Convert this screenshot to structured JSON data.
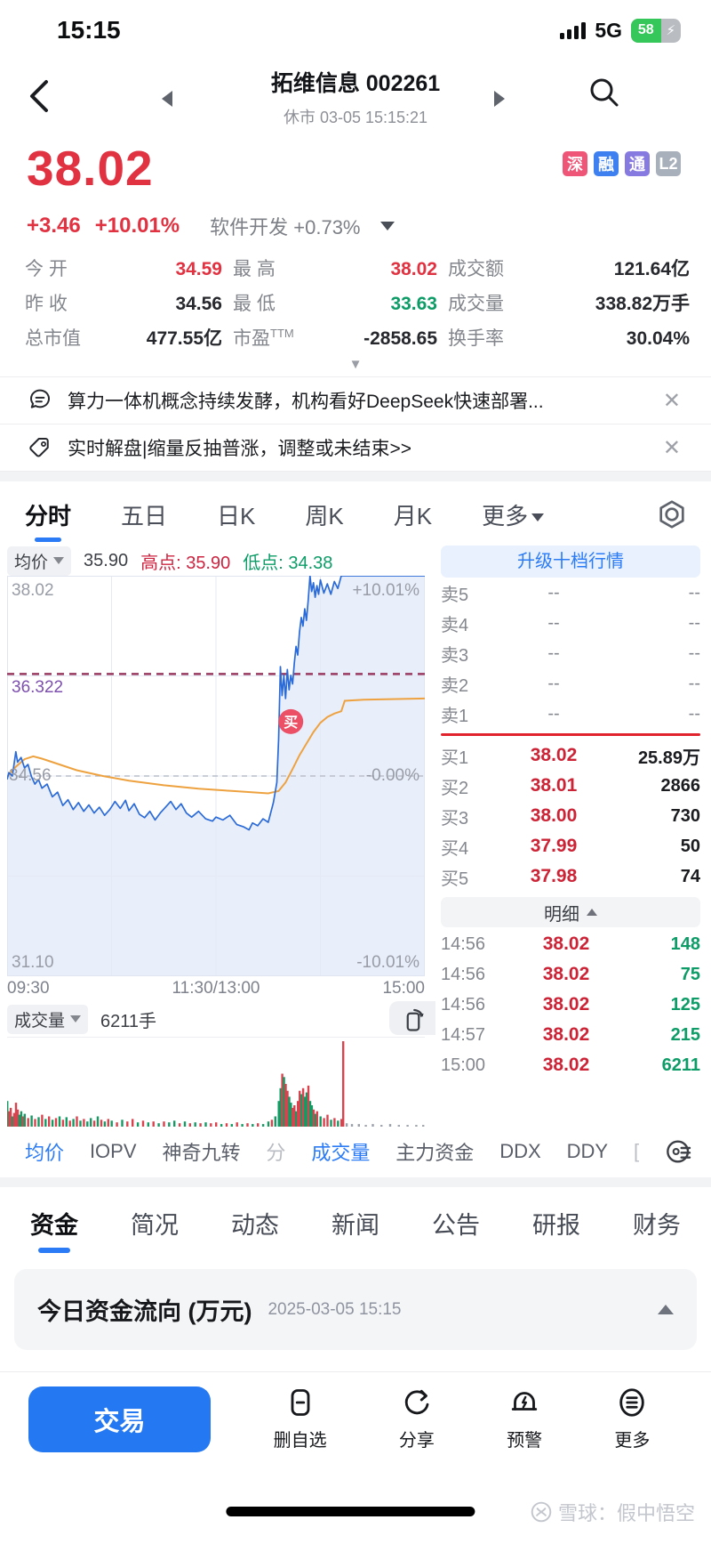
{
  "status_bar": {
    "time": "15:15",
    "network": "5G",
    "battery_percent": "58"
  },
  "nav": {
    "title": "拓维信息 002261",
    "market_status": "休市 03-05 15:15:21"
  },
  "quote": {
    "price": "38.02",
    "change": "+3.46",
    "change_percent": "+10.01%",
    "industry": "软件开发 +0.73%",
    "badges": [
      {
        "label": "深",
        "color": "#ee5577"
      },
      {
        "label": "融",
        "color": "#3e80f0"
      },
      {
        "label": "通",
        "color": "#8679e0"
      },
      {
        "label": "L2",
        "color": "#a8b0bc"
      }
    ]
  },
  "stats": {
    "items": [
      {
        "label": "今 开",
        "sup": "",
        "value": "34.59",
        "color": "#e03241"
      },
      {
        "label": "最 高",
        "sup": "",
        "value": "38.02",
        "color": "#e03241"
      },
      {
        "label": "成交额",
        "sup": "",
        "value": "121.64亿",
        "color": "#26282d"
      },
      {
        "label": "昨 收",
        "sup": "",
        "value": "34.56",
        "color": "#26282d"
      },
      {
        "label": "最 低",
        "sup": "",
        "value": "33.63",
        "color": "#0d9c67"
      },
      {
        "label": "成交量",
        "sup": "",
        "value": "338.82万手",
        "color": "#26282d"
      },
      {
        "label": "总市值",
        "sup": "",
        "value": "477.55亿",
        "color": "#26282d"
      },
      {
        "label": "市盈",
        "sup": "TTM",
        "value": "-2858.65",
        "color": "#26282d"
      },
      {
        "label": "换手率",
        "sup": "",
        "value": "30.04%",
        "color": "#26282d"
      }
    ]
  },
  "banners": {
    "items": [
      {
        "text": "算力一体机概念持续发酵，机构看好DeepSeek快速部署...",
        "close": "✕"
      },
      {
        "text": "实时解盘|缩量反抽普涨，调整或未结束>>",
        "close": "✕"
      }
    ]
  },
  "chart_tabs": {
    "items": [
      {
        "label": "分时"
      },
      {
        "label": "五日"
      },
      {
        "label": "日K"
      },
      {
        "label": "周K"
      },
      {
        "label": "月K"
      },
      {
        "label": "更多"
      }
    ]
  },
  "chart_data": {
    "type": "line",
    "title": "分时",
    "header": {
      "avg_chip": "均价",
      "avg_value": "35.90",
      "high": "高点: 35.90",
      "low": "低点: 34.38"
    },
    "y_max": 38.02,
    "y_min": 31.1,
    "prev_close": 34.56,
    "ref_price": 36.322,
    "labels": {
      "top_left": "38.02",
      "top_right": "+10.01%",
      "mid_left": "34.56",
      "mid_right": "-0.00%",
      "ref_line": "36.322",
      "bottom_left": "31.10",
      "bottom_right": "-10.01%"
    },
    "x_labels": [
      "09:30",
      "11:30/13:00",
      "15:00"
    ],
    "x_range": [
      0,
      240
    ],
    "buy_marker": {
      "t": 163,
      "price": 35.5,
      "label": "买"
    },
    "colors": {
      "price_line": "#2b6bd8",
      "avg_line": "#eea23f",
      "fill": "#e9eefb",
      "ref_line": "#983a60",
      "ref_label": "#7d4fae",
      "prev_close_line": "#b9bdc9",
      "grid": "#e4e9f5",
      "border": "#dfe4f0",
      "up": "#d8434e",
      "down": "#169a64",
      "neutral": "#9aa0aa"
    },
    "price_series": [
      [
        0,
        34.5
      ],
      [
        1,
        34.62
      ],
      [
        3,
        34.56
      ],
      [
        5,
        34.98
      ],
      [
        6,
        34.8
      ],
      [
        8,
        34.88
      ],
      [
        10,
        34.7
      ],
      [
        12,
        34.76
      ],
      [
        14,
        34.55
      ],
      [
        16,
        34.42
      ],
      [
        18,
        34.5
      ],
      [
        20,
        34.35
      ],
      [
        23,
        34.42
      ],
      [
        26,
        34.2
      ],
      [
        29,
        34.28
      ],
      [
        32,
        34.05
      ],
      [
        35,
        34.15
      ],
      [
        38,
        33.98
      ],
      [
        41,
        34.1
      ],
      [
        44,
        33.95
      ],
      [
        47,
        34.06
      ],
      [
        50,
        33.92
      ],
      [
        53,
        34.02
      ],
      [
        56,
        33.88
      ],
      [
        59,
        33.98
      ],
      [
        62,
        34.12
      ],
      [
        65,
        34.0
      ],
      [
        68,
        34.14
      ],
      [
        70,
        33.96
      ],
      [
        73,
        34.08
      ],
      [
        76,
        33.9
      ],
      [
        79,
        33.84
      ],
      [
        82,
        33.95
      ],
      [
        85,
        33.8
      ],
      [
        88,
        33.92
      ],
      [
        91,
        34.02
      ],
      [
        94,
        34.12
      ],
      [
        97,
        33.98
      ],
      [
        100,
        34.08
      ],
      [
        103,
        33.92
      ],
      [
        106,
        33.85
      ],
      [
        110,
        33.95
      ],
      [
        114,
        33.82
      ],
      [
        118,
        33.78
      ],
      [
        120,
        33.85
      ],
      [
        124,
        33.8
      ],
      [
        128,
        33.88
      ],
      [
        132,
        33.72
      ],
      [
        136,
        33.68
      ],
      [
        139,
        33.63
      ],
      [
        141,
        33.75
      ],
      [
        144,
        33.7
      ],
      [
        147,
        33.82
      ],
      [
        150,
        33.76
      ],
      [
        153,
        34.1
      ],
      [
        155,
        34.45
      ],
      [
        156,
        35.2
      ],
      [
        157,
        36.45
      ],
      [
        158,
        35.95
      ],
      [
        159,
        36.3
      ],
      [
        160,
        35.9
      ],
      [
        161,
        36.4
      ],
      [
        162,
        36.05
      ],
      [
        163,
        36.3
      ],
      [
        164,
        36.15
      ],
      [
        165,
        36.5
      ],
      [
        166,
        36.8
      ],
      [
        167,
        36.65
      ],
      [
        168,
        37.05
      ],
      [
        169,
        37.3
      ],
      [
        170,
        37.15
      ],
      [
        171,
        37.45
      ],
      [
        172,
        37.25
      ],
      [
        173,
        37.6
      ],
      [
        174,
        38.02
      ],
      [
        175,
        37.75
      ],
      [
        176,
        37.9
      ],
      [
        177,
        37.65
      ],
      [
        178,
        37.85
      ],
      [
        179,
        37.7
      ],
      [
        180,
        37.95
      ],
      [
        182,
        37.72
      ],
      [
        184,
        37.88
      ],
      [
        186,
        37.7
      ],
      [
        188,
        37.92
      ],
      [
        190,
        37.8
      ],
      [
        192,
        38.02
      ],
      [
        240,
        38.02
      ]
    ],
    "avg_series": [
      [
        0,
        34.55
      ],
      [
        5,
        34.72
      ],
      [
        10,
        34.85
      ],
      [
        15,
        34.9
      ],
      [
        20,
        34.86
      ],
      [
        30,
        34.76
      ],
      [
        40,
        34.66
      ],
      [
        55,
        34.56
      ],
      [
        70,
        34.48
      ],
      [
        90,
        34.4
      ],
      [
        110,
        34.34
      ],
      [
        130,
        34.3
      ],
      [
        150,
        34.26
      ],
      [
        156,
        34.3
      ],
      [
        160,
        34.45
      ],
      [
        164,
        34.68
      ],
      [
        168,
        34.92
      ],
      [
        172,
        35.12
      ],
      [
        176,
        35.32
      ],
      [
        180,
        35.48
      ],
      [
        184,
        35.58
      ],
      [
        188,
        35.64
      ],
      [
        192,
        35.68
      ],
      [
        194,
        35.86
      ],
      [
        205,
        35.88
      ],
      [
        240,
        35.9
      ]
    ],
    "volume": {
      "chip": "成交量",
      "value": "6211手",
      "bars": [
        [
          0,
          0.3,
          "g"
        ],
        [
          1,
          0.18,
          "r"
        ],
        [
          2,
          0.22,
          "r"
        ],
        [
          3,
          0.12,
          "g"
        ],
        [
          4,
          0.16,
          "r"
        ],
        [
          5,
          0.28,
          "r"
        ],
        [
          6,
          0.2,
          "r"
        ],
        [
          7,
          0.14,
          "g"
        ],
        [
          8,
          0.18,
          "g"
        ],
        [
          9,
          0.12,
          "r"
        ],
        [
          10,
          0.15,
          "g"
        ],
        [
          12,
          0.1,
          "r"
        ],
        [
          14,
          0.13,
          "g"
        ],
        [
          16,
          0.09,
          "r"
        ],
        [
          18,
          0.11,
          "g"
        ],
        [
          20,
          0.14,
          "r"
        ],
        [
          22,
          0.09,
          "g"
        ],
        [
          24,
          0.12,
          "r"
        ],
        [
          26,
          0.08,
          "g"
        ],
        [
          28,
          0.1,
          "r"
        ],
        [
          30,
          0.12,
          "g"
        ],
        [
          32,
          0.08,
          "r"
        ],
        [
          34,
          0.11,
          "g"
        ],
        [
          36,
          0.07,
          "r"
        ],
        [
          38,
          0.09,
          "g"
        ],
        [
          40,
          0.12,
          "r"
        ],
        [
          42,
          0.07,
          "g"
        ],
        [
          44,
          0.09,
          "r"
        ],
        [
          46,
          0.06,
          "g"
        ],
        [
          48,
          0.1,
          "g"
        ],
        [
          50,
          0.07,
          "r"
        ],
        [
          52,
          0.12,
          "g"
        ],
        [
          54,
          0.08,
          "r"
        ],
        [
          56,
          0.06,
          "g"
        ],
        [
          58,
          0.09,
          "r"
        ],
        [
          60,
          0.07,
          "g"
        ],
        [
          63,
          0.05,
          "r"
        ],
        [
          66,
          0.08,
          "g"
        ],
        [
          69,
          0.06,
          "r"
        ],
        [
          72,
          0.09,
          "r"
        ],
        [
          75,
          0.05,
          "g"
        ],
        [
          78,
          0.07,
          "r"
        ],
        [
          81,
          0.05,
          "g"
        ],
        [
          84,
          0.06,
          "r"
        ],
        [
          87,
          0.04,
          "g"
        ],
        [
          90,
          0.06,
          "r"
        ],
        [
          93,
          0.05,
          "g"
        ],
        [
          96,
          0.07,
          "g"
        ],
        [
          99,
          0.04,
          "r"
        ],
        [
          102,
          0.06,
          "g"
        ],
        [
          105,
          0.04,
          "r"
        ],
        [
          108,
          0.05,
          "g"
        ],
        [
          111,
          0.04,
          "r"
        ],
        [
          114,
          0.05,
          "g"
        ],
        [
          117,
          0.04,
          "r"
        ],
        [
          120,
          0.05,
          "r"
        ],
        [
          123,
          0.03,
          "g"
        ],
        [
          126,
          0.04,
          "r"
        ],
        [
          129,
          0.03,
          "g"
        ],
        [
          132,
          0.05,
          "r"
        ],
        [
          135,
          0.03,
          "g"
        ],
        [
          138,
          0.04,
          "r"
        ],
        [
          141,
          0.03,
          "g"
        ],
        [
          144,
          0.04,
          "r"
        ],
        [
          147,
          0.03,
          "g"
        ],
        [
          150,
          0.06,
          "g"
        ],
        [
          152,
          0.08,
          "r"
        ],
        [
          154,
          0.12,
          "g"
        ],
        [
          156,
          0.3,
          "g"
        ],
        [
          157,
          0.45,
          "g"
        ],
        [
          158,
          0.62,
          "r"
        ],
        [
          159,
          0.58,
          "g"
        ],
        [
          160,
          0.5,
          "r"
        ],
        [
          161,
          0.42,
          "r"
        ],
        [
          162,
          0.35,
          "g"
        ],
        [
          163,
          0.28,
          "g"
        ],
        [
          164,
          0.22,
          "r"
        ],
        [
          165,
          0.25,
          "r"
        ],
        [
          166,
          0.18,
          "g"
        ],
        [
          167,
          0.3,
          "r"
        ],
        [
          168,
          0.42,
          "r"
        ],
        [
          169,
          0.38,
          "g"
        ],
        [
          170,
          0.45,
          "r"
        ],
        [
          171,
          0.35,
          "g"
        ],
        [
          172,
          0.4,
          "g"
        ],
        [
          173,
          0.48,
          "r"
        ],
        [
          174,
          0.3,
          "g"
        ],
        [
          175,
          0.25,
          "g"
        ],
        [
          176,
          0.2,
          "r"
        ],
        [
          177,
          0.15,
          "g"
        ],
        [
          178,
          0.18,
          "r"
        ],
        [
          180,
          0.12,
          "g"
        ],
        [
          182,
          0.1,
          "r"
        ],
        [
          184,
          0.14,
          "r"
        ],
        [
          186,
          0.08,
          "g"
        ],
        [
          188,
          0.1,
          "r"
        ],
        [
          190,
          0.07,
          "g"
        ],
        [
          192,
          0.09,
          "r"
        ],
        [
          193,
          1.0,
          "r"
        ],
        [
          195,
          0.04,
          "n"
        ],
        [
          198,
          0.03,
          "n"
        ],
        [
          202,
          0.03,
          "n"
        ],
        [
          206,
          0.02,
          "n"
        ],
        [
          210,
          0.03,
          "n"
        ],
        [
          215,
          0.02,
          "n"
        ],
        [
          220,
          0.03,
          "n"
        ],
        [
          225,
          0.02,
          "n"
        ],
        [
          230,
          0.02,
          "n"
        ],
        [
          235,
          0.02,
          "n"
        ],
        [
          239,
          0.02,
          "n"
        ]
      ]
    }
  },
  "order_book": {
    "upgrade_button": "升级十档行情",
    "sells": [
      {
        "label": "卖5",
        "price": "--",
        "amount": "--"
      },
      {
        "label": "卖4",
        "price": "--",
        "amount": "--"
      },
      {
        "label": "卖3",
        "price": "--",
        "amount": "--"
      },
      {
        "label": "卖2",
        "price": "--",
        "amount": "--"
      },
      {
        "label": "卖1",
        "price": "--",
        "amount": "--"
      }
    ],
    "buys": [
      {
        "label": "买1",
        "price": "38.02",
        "amount": "25.89万"
      },
      {
        "label": "买2",
        "price": "38.01",
        "amount": "2866"
      },
      {
        "label": "买3",
        "price": "38.00",
        "amount": "730"
      },
      {
        "label": "买4",
        "price": "37.99",
        "amount": "50"
      },
      {
        "label": "买5",
        "price": "37.98",
        "amount": "74"
      }
    ],
    "detail_header": "明细",
    "details": [
      {
        "time": "14:56",
        "price": "38.02",
        "amount": "148"
      },
      {
        "time": "14:56",
        "price": "38.02",
        "amount": "75"
      },
      {
        "time": "14:56",
        "price": "38.02",
        "amount": "125"
      },
      {
        "time": "14:57",
        "price": "38.02",
        "amount": "215"
      },
      {
        "time": "15:00",
        "price": "38.02",
        "amount": "6211"
      }
    ]
  },
  "indicator_tabs": {
    "items": [
      {
        "label": "均价",
        "state": "active"
      },
      {
        "label": "IOPV",
        "state": "normal"
      },
      {
        "label": "神奇九转",
        "state": "normal"
      },
      {
        "label": "分",
        "state": "faded"
      },
      {
        "label": "成交量",
        "state": "active"
      },
      {
        "label": "主力资金",
        "state": "normal"
      },
      {
        "label": "DDX",
        "state": "normal"
      },
      {
        "label": "DDY",
        "state": "normal"
      },
      {
        "label": "[",
        "state": "faded"
      }
    ]
  },
  "section_tabs": {
    "items": [
      {
        "label": "资金"
      },
      {
        "label": "简况"
      },
      {
        "label": "动态"
      },
      {
        "label": "新闻"
      },
      {
        "label": "公告"
      },
      {
        "label": "研报"
      },
      {
        "label": "财务"
      }
    ]
  },
  "fund_flow": {
    "title": "今日资金流向 (万元)",
    "timestamp": "2025-03-05 15:15"
  },
  "bottom_bar": {
    "trade_label": "交易",
    "actions": [
      {
        "label": "删自选"
      },
      {
        "label": "分享"
      },
      {
        "label": "预警"
      },
      {
        "label": "更多"
      }
    ]
  },
  "watermark": "雪球：假中悟空"
}
